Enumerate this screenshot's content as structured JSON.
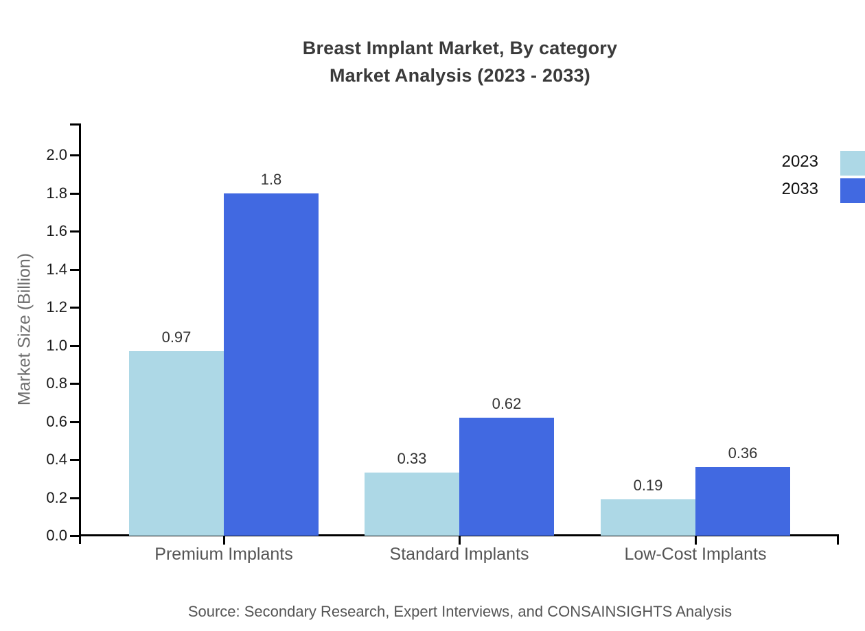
{
  "header": {
    "title_line1": "Breast Implant Market, By category",
    "title_line2": "Market Analysis (2023 - 2033)"
  },
  "footer": {
    "source_note": "Source: Secondary Research, Expert Interviews, and CONSAINSIGHTS Analysis"
  },
  "colors": {
    "series_2023": "#ADD8E6",
    "series_2033": "#4169E1",
    "axis": "#000000",
    "title_text": "#3A3A3A",
    "tick_text": "#1A1A1A",
    "category_text": "#555555",
    "y_axis_title_text": "#6E6E6E",
    "value_label_text": "#333333",
    "legend_text": "#111111",
    "source_text": "#555555",
    "background": "#FFFFFF"
  },
  "chart_data": {
    "type": "bar",
    "title": "Breast Implant Market, By category — Market Analysis (2023 - 2033)",
    "categories": [
      "Premium Implants",
      "Standard Implants",
      "Low-Cost Implants"
    ],
    "series": [
      {
        "name": "2023",
        "color": "#ADD8E6",
        "values": [
          0.97,
          0.33,
          0.19
        ]
      },
      {
        "name": "2033",
        "color": "#4169E1",
        "values": [
          1.8,
          0.62,
          0.36
        ]
      }
    ],
    "xlabel": "",
    "ylabel": "Market Size (Billion)",
    "ylim": [
      0,
      2.16
    ],
    "yticks": [
      0.0,
      0.2,
      0.4,
      0.6,
      0.8,
      1.0,
      1.2,
      1.4,
      1.6,
      1.8,
      2.0
    ],
    "grid": false,
    "legend_position": "upper-right",
    "value_labels_shown": true
  }
}
